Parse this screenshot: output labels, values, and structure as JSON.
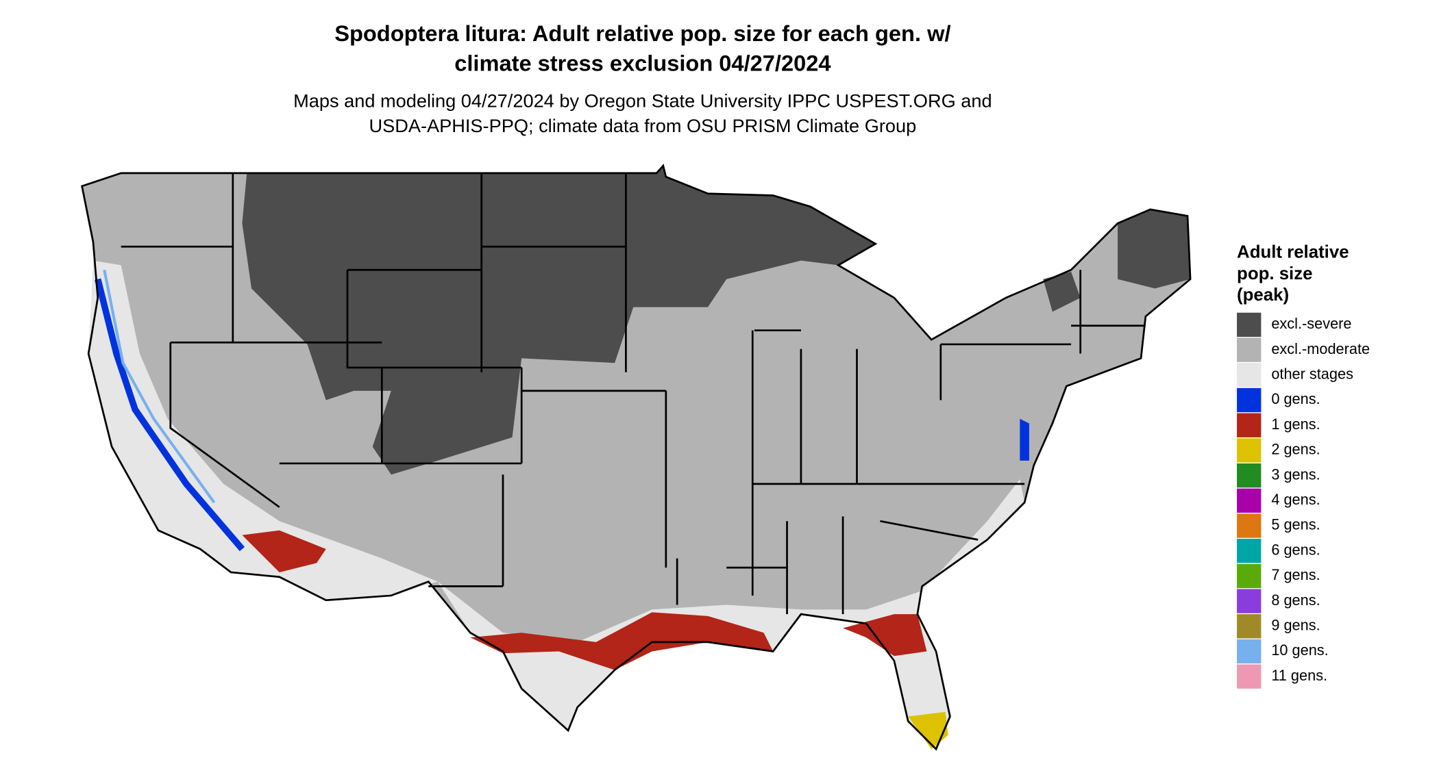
{
  "title_lines": [
    "Spodoptera litura: Adult relative pop. size for each gen. w/",
    "climate stress exclusion 04/27/2024"
  ],
  "subtitle_lines": [
    "Maps and modeling 04/27/2024 by Oregon State University IPPC USPEST.ORG and",
    "USDA-APHIS-PPQ; climate data from OSU PRISM Climate Group"
  ],
  "legend": {
    "title_lines": [
      "Adult relative",
      "pop. size",
      "(peak)"
    ],
    "items": [
      {
        "label": "excl.-severe",
        "color": "#4d4d4d"
      },
      {
        "label": "excl.-moderate",
        "color": "#b3b3b3"
      },
      {
        "label": "other stages",
        "color": "#e6e6e6"
      },
      {
        "label": "0 gens.",
        "color": "#0033dd"
      },
      {
        "label": "1 gens.",
        "color": "#b22518"
      },
      {
        "label": "2 gens.",
        "color": "#dcc200"
      },
      {
        "label": "3 gens.",
        "color": "#228b22"
      },
      {
        "label": "4 gens.",
        "color": "#aa00aa"
      },
      {
        "label": "5 gens.",
        "color": "#dd7711"
      },
      {
        "label": "6 gens.",
        "color": "#00a6a6"
      },
      {
        "label": "7 gens.",
        "color": "#5aaa0a"
      },
      {
        "label": "8 gens.",
        "color": "#8a3ddd"
      },
      {
        "label": "9 gens.",
        "color": "#a08a28"
      },
      {
        "label": "10 gens.",
        "color": "#77b0ee"
      },
      {
        "label": "11 gens.",
        "color": "#ee99b4"
      }
    ]
  }
}
